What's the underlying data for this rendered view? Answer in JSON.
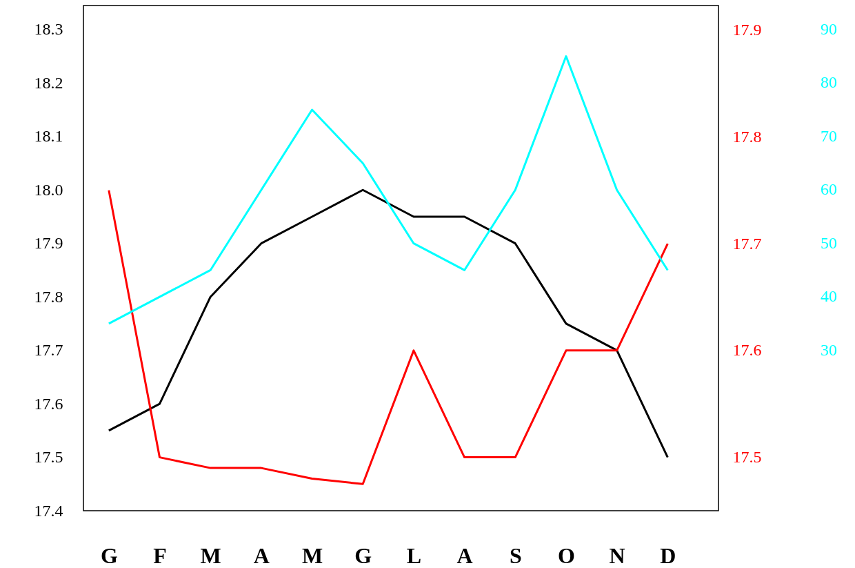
{
  "chart_data": {
    "type": "line",
    "categories": [
      "G",
      "F",
      "M",
      "A",
      "M",
      "G",
      "L",
      "A",
      "S",
      "O",
      "N",
      "D"
    ],
    "series": [
      {
        "color": "#000000",
        "axis": "y",
        "values": [
          17.55,
          17.6,
          17.8,
          17.9,
          17.95,
          18.0,
          17.95,
          17.95,
          17.9,
          17.75,
          17.7,
          17.5
        ]
      },
      {
        "color": "#ff0000",
        "axis": "y2",
        "values": [
          17.75,
          17.5,
          17.49,
          17.49,
          17.48,
          17.475,
          17.6,
          17.5,
          17.5,
          17.6,
          17.6,
          17.7
        ]
      },
      {
        "color": "#00ffff",
        "axis": "y3",
        "values": [
          35,
          40,
          45,
          60,
          75,
          65,
          50,
          45,
          60,
          85,
          60,
          45
        ]
      }
    ],
    "ylim": [
      17.4,
      18.345
    ],
    "yticks": [
      17.4,
      17.5,
      17.6,
      17.7,
      17.8,
      17.9,
      {
        "value": 18,
        "label": "18.0"
      },
      18.1,
      18.2,
      18.3
    ],
    "y2lim": [
      17.45,
      17.923
    ],
    "y2ticks": [
      17.5,
      17.6,
      17.7,
      17.8,
      17.9
    ],
    "y3lim": [
      0,
      94.5
    ],
    "y3ticks": [
      30,
      40,
      50,
      60,
      70,
      80,
      90
    ],
    "grid": false,
    "line_style": "solid"
  }
}
